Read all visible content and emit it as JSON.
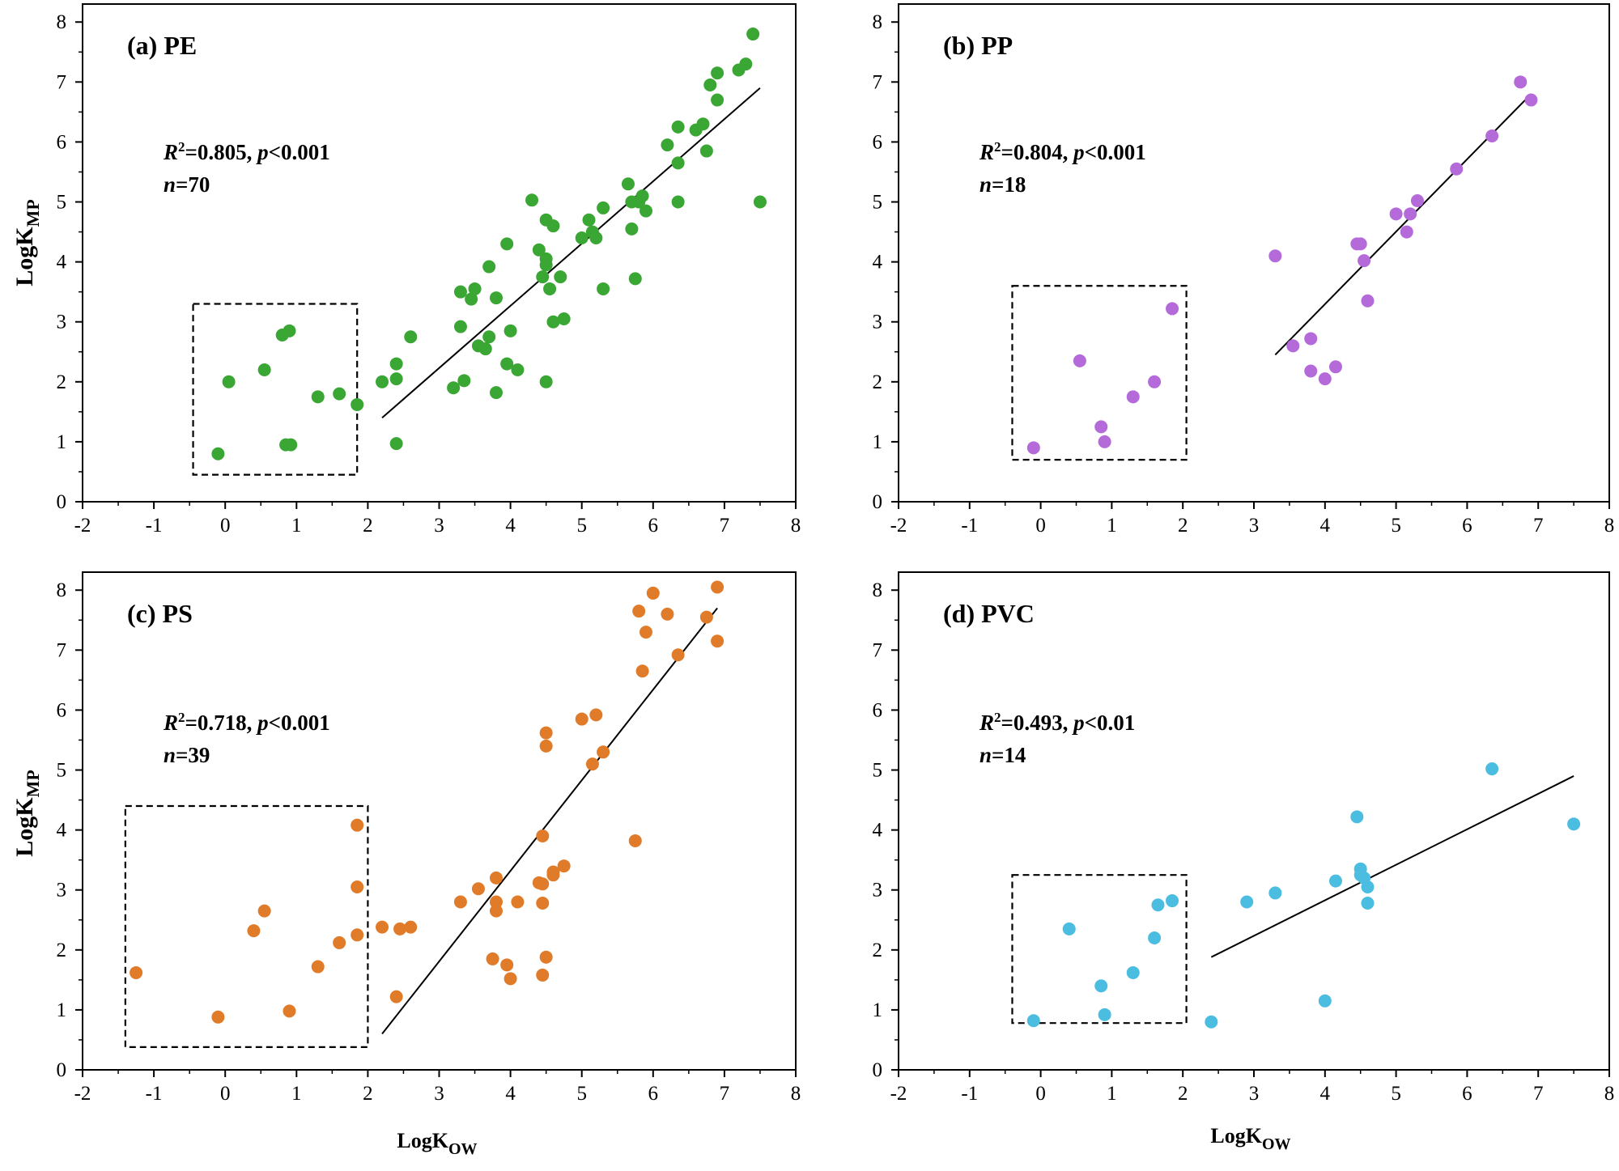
{
  "figure": {
    "ylabel_main": "LogK",
    "ylabel_sub": "MP",
    "xlabel_main": "LogK",
    "xlabel_sub": "OW"
  },
  "chart_data": [
    {
      "type": "scatter",
      "panel": "a",
      "title": "(a)  PE",
      "color": "#3aa633",
      "stat_r2": "0.805",
      "stat_p": "0.001",
      "stat_n": "70",
      "xlim": [
        -2,
        8
      ],
      "ylim": [
        0,
        8.3
      ],
      "x_ticks": [
        -2,
        -1,
        0,
        1,
        2,
        3,
        4,
        5,
        6,
        7,
        8
      ],
      "y_ticks": [
        0,
        1,
        2,
        3,
        4,
        5,
        6,
        7,
        8
      ],
      "fit": [
        [
          2.2,
          1.4
        ],
        [
          7.5,
          6.9
        ]
      ],
      "highlight_box": {
        "x": [
          -0.45,
          1.85
        ],
        "y": [
          0.45,
          3.3
        ]
      },
      "points": [
        [
          -0.1,
          0.8
        ],
        [
          0.05,
          2.0
        ],
        [
          0.55,
          2.2
        ],
        [
          0.8,
          2.78
        ],
        [
          0.9,
          2.85
        ],
        [
          0.85,
          0.95
        ],
        [
          0.92,
          0.95
        ],
        [
          1.3,
          1.75
        ],
        [
          1.6,
          1.8
        ],
        [
          1.85,
          1.62
        ],
        [
          2.2,
          2.0
        ],
        [
          2.4,
          2.05
        ],
        [
          2.4,
          2.3
        ],
        [
          2.4,
          0.97
        ],
        [
          2.6,
          2.75
        ],
        [
          3.2,
          1.9
        ],
        [
          3.3,
          2.92
        ],
        [
          3.3,
          3.5
        ],
        [
          3.35,
          2.02
        ],
        [
          3.45,
          3.38
        ],
        [
          3.5,
          3.55
        ],
        [
          3.55,
          2.6
        ],
        [
          3.65,
          2.55
        ],
        [
          3.7,
          2.75
        ],
        [
          3.7,
          3.92
        ],
        [
          3.8,
          3.4
        ],
        [
          3.8,
          1.82
        ],
        [
          3.95,
          2.3
        ],
        [
          3.95,
          4.3
        ],
        [
          4.0,
          2.85
        ],
        [
          4.1,
          2.2
        ],
        [
          4.3,
          5.03
        ],
        [
          4.4,
          4.2
        ],
        [
          4.45,
          3.75
        ],
        [
          4.5,
          4.05
        ],
        [
          4.5,
          3.95
        ],
        [
          4.5,
          2.0
        ],
        [
          4.5,
          4.7
        ],
        [
          4.55,
          3.55
        ],
        [
          4.6,
          4.6
        ],
        [
          4.6,
          3.0
        ],
        [
          4.7,
          3.75
        ],
        [
          4.75,
          3.05
        ],
        [
          5.0,
          4.4
        ],
        [
          5.1,
          4.7
        ],
        [
          5.15,
          4.5
        ],
        [
          5.2,
          4.4
        ],
        [
          5.3,
          3.55
        ],
        [
          5.3,
          4.9
        ],
        [
          5.65,
          5.3
        ],
        [
          5.7,
          5.0
        ],
        [
          5.7,
          4.55
        ],
        [
          5.75,
          3.72
        ],
        [
          5.8,
          5.0
        ],
        [
          5.85,
          5.1
        ],
        [
          5.9,
          4.85
        ],
        [
          6.2,
          5.95
        ],
        [
          6.35,
          5.0
        ],
        [
          6.35,
          5.65
        ],
        [
          6.35,
          6.25
        ],
        [
          6.6,
          6.2
        ],
        [
          6.7,
          6.3
        ],
        [
          6.75,
          5.85
        ],
        [
          6.8,
          6.95
        ],
        [
          6.9,
          6.7
        ],
        [
          6.9,
          7.15
        ],
        [
          7.2,
          7.2
        ],
        [
          7.3,
          7.3
        ],
        [
          7.4,
          7.8
        ],
        [
          7.5,
          5.0
        ]
      ]
    },
    {
      "type": "scatter",
      "panel": "b",
      "title": "(b)  PP",
      "color": "#b46ad8",
      "stat_r2": "0.804",
      "stat_p": "0.001",
      "stat_n": "18",
      "xlim": [
        -2,
        8
      ],
      "ylim": [
        0,
        8.3
      ],
      "x_ticks": [
        -2,
        -1,
        0,
        1,
        2,
        3,
        4,
        5,
        6,
        7,
        8
      ],
      "y_ticks": [
        0,
        1,
        2,
        3,
        4,
        5,
        6,
        7,
        8
      ],
      "fit": [
        [
          3.3,
          2.45
        ],
        [
          6.9,
          6.8
        ]
      ],
      "highlight_box": {
        "x": [
          -0.4,
          2.05
        ],
        "y": [
          0.7,
          3.6
        ]
      },
      "points": [
        [
          -0.1,
          0.9
        ],
        [
          0.55,
          2.35
        ],
        [
          0.85,
          1.25
        ],
        [
          0.9,
          1.0
        ],
        [
          1.3,
          1.75
        ],
        [
          1.6,
          2.0
        ],
        [
          1.85,
          3.22
        ],
        [
          3.3,
          4.1
        ],
        [
          3.55,
          2.6
        ],
        [
          3.8,
          2.72
        ],
        [
          3.8,
          2.18
        ],
        [
          4.0,
          2.05
        ],
        [
          4.15,
          2.25
        ],
        [
          4.45,
          4.3
        ],
        [
          4.5,
          4.3
        ],
        [
          4.55,
          4.02
        ],
        [
          4.6,
          3.35
        ],
        [
          5.0,
          4.8
        ],
        [
          5.15,
          4.5
        ],
        [
          5.2,
          4.8
        ],
        [
          5.3,
          5.02
        ],
        [
          5.85,
          5.55
        ],
        [
          6.35,
          6.1
        ],
        [
          6.75,
          7.0
        ],
        [
          6.9,
          6.7
        ]
      ]
    },
    {
      "type": "scatter",
      "panel": "c",
      "title": "(c)  PS",
      "color": "#e07b2a",
      "stat_r2": "0.718",
      "stat_p": "0.001",
      "stat_n": "39",
      "xlim": [
        -2,
        8
      ],
      "ylim": [
        0,
        8.3
      ],
      "x_ticks": [
        -2,
        -1,
        0,
        1,
        2,
        3,
        4,
        5,
        6,
        7,
        8
      ],
      "y_ticks": [
        0,
        1,
        2,
        3,
        4,
        5,
        6,
        7,
        8
      ],
      "fit": [
        [
          2.2,
          0.6
        ],
        [
          6.9,
          7.7
        ]
      ],
      "highlight_box": {
        "x": [
          -1.4,
          2.0
        ],
        "y": [
          0.38,
          4.4
        ]
      },
      "points": [
        [
          -1.25,
          1.62
        ],
        [
          -0.1,
          0.88
        ],
        [
          0.4,
          2.32
        ],
        [
          0.55,
          2.65
        ],
        [
          0.9,
          0.98
        ],
        [
          1.3,
          1.72
        ],
        [
          1.6,
          2.12
        ],
        [
          1.85,
          2.25
        ],
        [
          1.85,
          3.05
        ],
        [
          1.85,
          4.08
        ],
        [
          2.2,
          2.38
        ],
        [
          2.4,
          1.22
        ],
        [
          2.45,
          2.35
        ],
        [
          2.6,
          2.38
        ],
        [
          3.3,
          2.8
        ],
        [
          3.55,
          3.02
        ],
        [
          3.75,
          1.85
        ],
        [
          3.8,
          3.2
        ],
        [
          3.8,
          2.8
        ],
        [
          3.8,
          2.65
        ],
        [
          3.95,
          1.75
        ],
        [
          4.0,
          1.52
        ],
        [
          4.1,
          2.8
        ],
        [
          4.4,
          3.12
        ],
        [
          4.45,
          3.1
        ],
        [
          4.45,
          3.9
        ],
        [
          4.45,
          2.78
        ],
        [
          4.45,
          1.58
        ],
        [
          4.5,
          1.88
        ],
        [
          4.5,
          5.62
        ],
        [
          4.5,
          5.4
        ],
        [
          4.6,
          3.25
        ],
        [
          4.6,
          3.3
        ],
        [
          4.75,
          3.4
        ],
        [
          5.0,
          5.85
        ],
        [
          5.15,
          5.1
        ],
        [
          5.2,
          5.92
        ],
        [
          5.3,
          5.3
        ],
        [
          5.75,
          3.82
        ],
        [
          5.8,
          7.65
        ],
        [
          5.85,
          6.65
        ],
        [
          5.9,
          7.3
        ],
        [
          6.0,
          7.95
        ],
        [
          6.2,
          7.6
        ],
        [
          6.35,
          6.92
        ],
        [
          6.75,
          7.55
        ],
        [
          6.9,
          8.05
        ],
        [
          6.9,
          7.15
        ]
      ]
    },
    {
      "type": "scatter",
      "panel": "d",
      "title": "(d)  PVC",
      "color": "#4bbde0",
      "stat_r2": "0.493",
      "stat_p": "0.01",
      "stat_n": "14",
      "xlim": [
        -2,
        8
      ],
      "ylim": [
        0,
        8.3
      ],
      "x_ticks": [
        -2,
        -1,
        0,
        1,
        2,
        3,
        4,
        5,
        6,
        7,
        8
      ],
      "y_ticks": [
        0,
        1,
        2,
        3,
        4,
        5,
        6,
        7,
        8
      ],
      "fit": [
        [
          2.4,
          1.88
        ],
        [
          7.5,
          4.9
        ]
      ],
      "highlight_box": {
        "x": [
          -0.4,
          2.05
        ],
        "y": [
          0.78,
          3.25
        ]
      },
      "points": [
        [
          -0.1,
          0.82
        ],
        [
          0.4,
          2.35
        ],
        [
          0.85,
          1.4
        ],
        [
          0.9,
          0.92
        ],
        [
          1.3,
          1.62
        ],
        [
          1.6,
          2.2
        ],
        [
          1.65,
          2.75
        ],
        [
          1.85,
          2.82
        ],
        [
          2.4,
          0.8
        ],
        [
          2.9,
          2.8
        ],
        [
          3.3,
          2.95
        ],
        [
          4.0,
          1.15
        ],
        [
          4.15,
          3.15
        ],
        [
          4.45,
          4.22
        ],
        [
          4.5,
          3.35
        ],
        [
          4.5,
          3.25
        ],
        [
          4.55,
          3.2
        ],
        [
          4.6,
          3.05
        ],
        [
          4.6,
          2.78
        ],
        [
          6.35,
          5.02
        ],
        [
          7.5,
          4.1
        ]
      ]
    }
  ]
}
